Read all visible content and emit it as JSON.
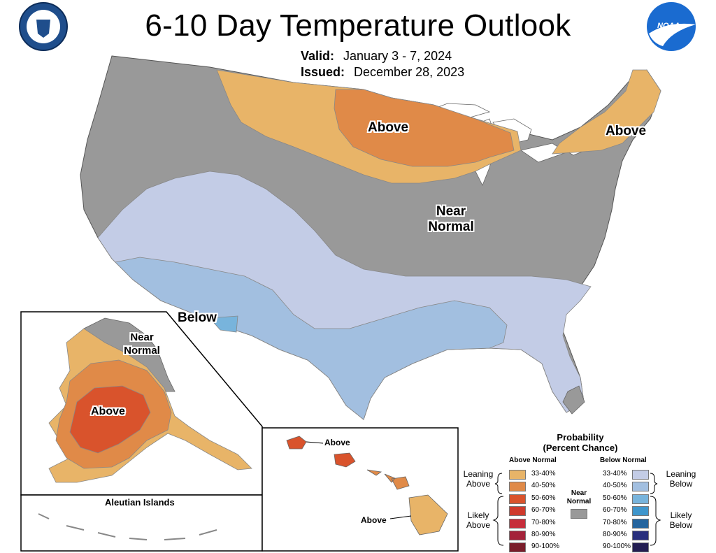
{
  "title": "6-10 Day Temperature Outlook",
  "valid_label": "Valid:",
  "valid_value": "January 3 - 7, 2024",
  "issued_label": "Issued:",
  "issued_value": "December 28, 2023",
  "logos": {
    "left": "department-of-commerce-seal",
    "right_text": "NOAA"
  },
  "regions": {
    "north_central": "Above",
    "northeast": "Above",
    "near_normal_1": "Near",
    "near_normal_2": "Normal",
    "southwest": "Below"
  },
  "alaska": {
    "near_1": "Near",
    "near_2": "Normal",
    "above": "Above"
  },
  "aleutian_label": "Aleutian Islands",
  "hawaii": {
    "north_label": "Above",
    "south_label": "Above"
  },
  "legend": {
    "title_1": "Probability",
    "title_2": "(Percent Chance)",
    "above_header": "Above Normal",
    "below_header": "Below Normal",
    "near_header_1": "Near",
    "near_header_2": "Normal",
    "leaning_above_1": "Leaning",
    "leaning_above_2": "Above",
    "likely_above_1": "Likely",
    "likely_above_2": "Above",
    "leaning_below_1": "Leaning",
    "leaning_below_2": "Below",
    "likely_below_1": "Likely",
    "likely_below_2": "Below",
    "above_levels": [
      "33-40%",
      "40-50%",
      "50-60%",
      "60-70%",
      "70-80%",
      "80-90%",
      "90-100%"
    ],
    "below_levels": [
      "33-40%",
      "40-50%",
      "50-60%",
      "60-70%",
      "70-80%",
      "80-90%",
      "90-100%"
    ],
    "above_colors": [
      "#e8b468",
      "#e08a48",
      "#d9532c",
      "#cf3a2c",
      "#c62d3a",
      "#a4223a",
      "#7a1d2a"
    ],
    "below_colors": [
      "#c3cce6",
      "#a2bfe0",
      "#78b4dc",
      "#3f96cc",
      "#24649e",
      "#282f7d",
      "#231d52"
    ],
    "near_color": "#999999"
  },
  "colors": {
    "near_gray": "#999999",
    "above_light": "#e8b468",
    "above_mid": "#e08a48",
    "above_dark": "#d9532c",
    "below_light": "#c3cce6",
    "below_mid": "#a2bfe0",
    "below_dark": "#78b4dc",
    "lakes": "#ffffff"
  }
}
